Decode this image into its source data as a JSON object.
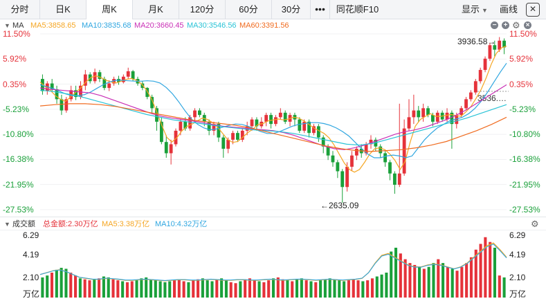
{
  "toolbar": {
    "tabs": [
      {
        "label": "分时",
        "active": false
      },
      {
        "label": "日K",
        "active": false
      },
      {
        "label": "周K",
        "active": true
      },
      {
        "label": "月K",
        "active": false
      },
      {
        "label": "120分",
        "active": false
      },
      {
        "label": "60分",
        "active": false
      },
      {
        "label": "30分",
        "active": false
      }
    ],
    "more_label": "•••",
    "f10_label": "同花顺F10",
    "display_label": "显示",
    "draw_label": "画线",
    "close_label": "✕"
  },
  "price_panel": {
    "indicator_name": "MA",
    "ma5": "MA5:3858.65",
    "ma10": "MA10:3835.68",
    "ma20": "MA20:3660.45",
    "ma30": "MA30:3546.56",
    "ma60": "MA60:3391.56",
    "y_ticks": [
      "11.50%",
      "5.92%",
      "0.35%",
      "-5.23%",
      "-10.80%",
      "-16.38%",
      "-21.95%",
      "-27.53%"
    ],
    "high_marker": "3936.58→",
    "low_marker": "←2635.09",
    "last_price_marker": "3536.…"
  },
  "volume_panel": {
    "name": "成交额",
    "total": "总金额:2.30万亿",
    "ma5": "MA5:3.38万亿",
    "ma10": "MA10:4.32万亿",
    "y_ticks": [
      "6.29",
      "4.19",
      "2.10"
    ],
    "unit": "万亿"
  },
  "colors": {
    "up": "#e5323a",
    "down": "#1aa03a",
    "ma5": "#f5a623",
    "ma10": "#2fa6e0",
    "ma20": "#c92fb5",
    "ma30": "#29c3d6",
    "ma60": "#f06b1f"
  },
  "chart_data": {
    "type": "candlestick",
    "price_axis_pct": [
      11.5,
      5.92,
      0.35,
      -5.23,
      -10.8,
      -16.38,
      -21.95,
      -27.53
    ],
    "candles_pct": [
      [
        1.5,
        -1.2,
        2.5,
        -2.0
      ],
      [
        -1.2,
        0.5,
        1.0,
        -2.0
      ],
      [
        0.5,
        -0.8,
        1.5,
        -1.5
      ],
      [
        -0.8,
        -3.0,
        0.0,
        -4.0
      ],
      [
        -3.0,
        -5.5,
        -2.0,
        -6.5
      ],
      [
        -5.5,
        -3.0,
        -2.5,
        -6.0
      ],
      [
        -3.0,
        -1.0,
        0.0,
        -3.5
      ],
      [
        -1.0,
        -2.5,
        0.0,
        -3.2
      ],
      [
        -2.5,
        0.0,
        1.0,
        -3.0
      ],
      [
        0.0,
        2.5,
        3.5,
        -1.0
      ],
      [
        2.5,
        1.0,
        3.0,
        0.5
      ],
      [
        1.0,
        3.0,
        3.8,
        0.5
      ],
      [
        3.0,
        1.5,
        3.5,
        0.8
      ],
      [
        1.5,
        -0.5,
        2.0,
        -1.0
      ],
      [
        -0.5,
        0.5,
        1.2,
        -1.2
      ],
      [
        0.5,
        1.5,
        2.0,
        0.0
      ],
      [
        1.5,
        0.8,
        2.2,
        0.2
      ],
      [
        0.8,
        2.0,
        2.5,
        0.5
      ],
      [
        2.0,
        3.2,
        4.0,
        1.5
      ],
      [
        3.2,
        1.5,
        3.5,
        1.0
      ],
      [
        1.5,
        0.5,
        2.0,
        0.0
      ],
      [
        0.5,
        -0.5,
        1.0,
        -1.0
      ],
      [
        -0.5,
        -2.5,
        -0.3,
        -3.0
      ],
      [
        -2.5,
        -5.0,
        -2.0,
        -6.0
      ],
      [
        -5.0,
        -8.0,
        -4.5,
        -10.0
      ],
      [
        -8.0,
        -12.5,
        -7.0,
        -13.0
      ],
      [
        -12.5,
        -15.0,
        -11.0,
        -16.0
      ],
      [
        -15.0,
        -13.0,
        -12.0,
        -17.5
      ],
      [
        -13.0,
        -10.0,
        -9.5,
        -13.5
      ],
      [
        -10.0,
        -8.0,
        -7.5,
        -11.0
      ],
      [
        -8.0,
        -9.5,
        -7.0,
        -10.0
      ],
      [
        -9.5,
        -7.0,
        -6.5,
        -10.0
      ],
      [
        -7.0,
        -5.5,
        -5.0,
        -8.0
      ],
      [
        -5.5,
        -6.5,
        -5.0,
        -7.0
      ],
      [
        -6.5,
        -8.0,
        -6.0,
        -9.0
      ],
      [
        -8.0,
        -10.0,
        -7.5,
        -11.0
      ],
      [
        -10.0,
        -8.5,
        -8.0,
        -11.0
      ],
      [
        -8.5,
        -11.5,
        -8.0,
        -12.5
      ],
      [
        -11.5,
        -14.0,
        -11.0,
        -16.0
      ],
      [
        -14.0,
        -12.0,
        -11.5,
        -15.0
      ],
      [
        -12.0,
        -10.5,
        -10.0,
        -13.0
      ],
      [
        -10.5,
        -12.0,
        -10.0,
        -12.5
      ],
      [
        -12.0,
        -10.0,
        -9.5,
        -12.5
      ],
      [
        -10.0,
        -9.0,
        -8.0,
        -11.0
      ],
      [
        -9.0,
        -7.5,
        -7.0,
        -10.0
      ],
      [
        -7.5,
        -9.0,
        -7.0,
        -10.0
      ],
      [
        -9.0,
        -8.0,
        -7.0,
        -9.5
      ],
      [
        -8.0,
        -6.5,
        -6.0,
        -9.0
      ],
      [
        -6.5,
        -8.5,
        -6.0,
        -9.5
      ],
      [
        -8.5,
        -7.0,
        -6.5,
        -9.0
      ],
      [
        -7.0,
        -6.0,
        -5.0,
        -7.5
      ],
      [
        -6.0,
        -8.0,
        -5.5,
        -8.5
      ],
      [
        -8.0,
        -6.5,
        -6.0,
        -9.0
      ],
      [
        -6.5,
        -7.5,
        -6.0,
        -9.0
      ],
      [
        -7.5,
        -10.0,
        -7.0,
        -10.5
      ],
      [
        -10.0,
        -8.0,
        -7.5,
        -10.5
      ],
      [
        -8.0,
        -10.5,
        -7.5,
        -11.5
      ],
      [
        -10.5,
        -9.0,
        -8.5,
        -11.0
      ],
      [
        -9.0,
        -11.5,
        -8.5,
        -12.5
      ],
      [
        -11.5,
        -13.5,
        -11.0,
        -15.0
      ],
      [
        -13.5,
        -15.5,
        -13.0,
        -16.5
      ],
      [
        -15.5,
        -17.0,
        -14.5,
        -18.0
      ],
      [
        -17.0,
        -19.0,
        -16.5,
        -20.5
      ],
      [
        -19.0,
        -22.5,
        -18.5,
        -26.0
      ],
      [
        -22.5,
        -18.0,
        -17.0,
        -23.5
      ],
      [
        -18.0,
        -15.5,
        -14.5,
        -19.0
      ],
      [
        -15.5,
        -14.0,
        -13.5,
        -16.5
      ],
      [
        -14.0,
        -15.0,
        -13.0,
        -16.0
      ],
      [
        -15.0,
        -13.0,
        -12.5,
        -15.5
      ],
      [
        -13.0,
        -12.0,
        -11.0,
        -14.0
      ],
      [
        -12.0,
        -13.5,
        -11.5,
        -14.5
      ],
      [
        -13.5,
        -15.0,
        -13.0,
        -16.0
      ],
      [
        -15.0,
        -17.0,
        -14.5,
        -18.0
      ],
      [
        -17.0,
        -19.5,
        -16.5,
        -21.0
      ],
      [
        -19.5,
        -22.0,
        -19.0,
        -24.0
      ],
      [
        -22.0,
        -19.5,
        -4.0,
        -22.5
      ],
      [
        -19.5,
        -9.5,
        -7.5,
        -20.0
      ],
      [
        -9.5,
        -7.0,
        -3.0,
        -10.0
      ],
      [
        -7.0,
        -5.5,
        -2.0,
        -8.5
      ],
      [
        -5.5,
        -7.0,
        -4.5,
        -8.0
      ],
      [
        -7.0,
        -5.0,
        -4.0,
        -8.0
      ],
      [
        -5.0,
        -6.5,
        -4.5,
        -7.0
      ],
      [
        -6.5,
        -8.0,
        -6.0,
        -9.0
      ],
      [
        -8.0,
        -6.0,
        -5.5,
        -8.5
      ],
      [
        -6.0,
        -7.5,
        -5.5,
        -8.0
      ],
      [
        -7.5,
        -6.0,
        -5.0,
        -8.0
      ],
      [
        -6.0,
        -8.5,
        -5.5,
        -14.0
      ],
      [
        -8.5,
        -6.5,
        -6.0,
        -9.5
      ],
      [
        -6.5,
        -5.0,
        -4.5,
        -7.0
      ],
      [
        -5.0,
        -3.0,
        -2.5,
        -5.5
      ],
      [
        -3.0,
        -1.5,
        -1.0,
        -3.5
      ],
      [
        -1.5,
        1.0,
        1.5,
        -2.0
      ],
      [
        1.0,
        3.5,
        4.0,
        0.5
      ],
      [
        3.5,
        6.0,
        6.5,
        3.0
      ],
      [
        6.0,
        9.0,
        9.5,
        5.5
      ],
      [
        9.0,
        8.0,
        10.0,
        6.5
      ],
      [
        8.0,
        10.0,
        10.8,
        7.5
      ],
      [
        10.0,
        8.5,
        10.5,
        7.0
      ]
    ],
    "ma_series_pct": {
      "MA5": [
        0.8,
        -0.2,
        -1.0,
        -2.2,
        -3.0,
        -3.5,
        -2.5,
        -1.5,
        -0.5,
        0.8,
        1.8,
        2.2,
        1.8,
        1.2,
        0.8,
        0.6,
        1.0,
        1.4,
        1.6,
        1.2,
        0.4,
        -1.0,
        -3.0,
        -5.8,
        -8.8,
        -11.5,
        -12.5,
        -11.5,
        -10.0,
        -9.0,
        -8.5,
        -7.8,
        -7.2,
        -7.5,
        -8.2,
        -9.2,
        -10.6,
        -12.0,
        -12.6,
        -12.4,
        -11.4,
        -10.4,
        -9.6,
        -8.6,
        -8.4,
        -7.8,
        -7.6,
        -7.4,
        -7.6,
        -7.4,
        -7.0,
        -7.2,
        -7.8,
        -8.6,
        -9.4,
        -10.0,
        -10.6,
        -11.6,
        -13.2,
        -15.2,
        -17.2,
        -18.6,
        -19.2,
        -18.6,
        -17.0,
        -15.2,
        -14.0,
        -13.8,
        -14.2,
        -15.2,
        -16.6,
        -18.6,
        -16.8,
        -12.5,
        -9.0,
        -7.5,
        -6.8,
        -6.2,
        -6.8,
        -6.8,
        -6.6,
        -6.4,
        -6.6,
        -6.8,
        -5.8,
        -4.6,
        -2.8,
        -0.8,
        1.8,
        4.8,
        7.2,
        8.4,
        8.8
      ],
      "MA10": [
        0.2,
        -0.2,
        -0.6,
        -1.2,
        -1.8,
        -2.2,
        -2.2,
        -2.0,
        -1.4,
        -0.6,
        0.2,
        0.8,
        1.2,
        1.2,
        1.1,
        1.0,
        1.0,
        1.1,
        1.0,
        0.6,
        -0.4,
        -1.8,
        -3.6,
        -5.6,
        -7.4,
        -8.6,
        -9.4,
        -9.8,
        -9.6,
        -9.2,
        -8.8,
        -8.5,
        -8.6,
        -9.0,
        -9.6,
        -10.2,
        -10.6,
        -10.6,
        -10.2,
        -9.6,
        -9.0,
        -8.6,
        -8.4,
        -8.2,
        -8.2,
        -8.4,
        -8.8,
        -9.4,
        -10.2,
        -11.2,
        -12.6,
        -14.0,
        -15.2,
        -16.0,
        -16.0,
        -15.6,
        -15.4,
        -15.6,
        -16.0,
        -15.6,
        -13.8,
        -12.0,
        -10.6,
        -9.4,
        -8.6,
        -7.8,
        -7.4,
        -7.0,
        -6.2,
        -5.0,
        -3.4,
        -1.4,
        0.8,
        3.0,
        5.0
      ],
      "MA20": [
        -0.5,
        -0.8,
        -1.0,
        -1.2,
        -1.4,
        -1.6,
        -2.2,
        -3.0,
        -3.8,
        -4.6,
        -5.4,
        -6.2,
        -6.8,
        -7.2,
        -7.5,
        -7.8,
        -8.2,
        -8.6,
        -9.0,
        -9.2,
        -9.4,
        -9.6,
        -9.8,
        -10.0,
        -10.4,
        -11.0,
        -11.8,
        -12.6,
        -13.4,
        -14.0,
        -14.2,
        -13.8,
        -13.2,
        -12.4,
        -11.6,
        -10.8,
        -10.2,
        -9.8,
        -9.2,
        -8.4,
        -7.6,
        -6.6,
        -5.4,
        -4.0,
        -2.6,
        -1.2,
        0.2
      ],
      "MA30": [
        -1.0,
        -1.3,
        -1.8,
        -2.4,
        -3.2,
        -4.0,
        -4.8,
        -5.6,
        -6.4,
        -7.0,
        -7.6,
        -8.0,
        -8.4,
        -8.8,
        -9.2,
        -9.5,
        -9.8,
        -10.0,
        -10.2,
        -10.6,
        -11.2,
        -11.8,
        -12.4,
        -13.0,
        -13.2,
        -12.8,
        -12.0,
        -11.2,
        -10.4,
        -9.6,
        -8.8,
        -8.0,
        -7.2,
        -6.2,
        -5.2,
        -4.2
      ],
      "MA60": [
        -4.5,
        -4.2,
        -4.0,
        -4.0,
        -4.2,
        -4.6,
        -5.2,
        -5.8,
        -6.4,
        -7.0,
        -7.6,
        -8.0,
        -8.4,
        -8.8,
        -9.4,
        -10.2,
        -11.0,
        -11.8,
        -12.6,
        -13.4,
        -14.0,
        -14.4,
        -14.6,
        -14.4,
        -14.2,
        -13.8,
        -13.2,
        -12.4,
        -11.2,
        -10.0,
        -8.6,
        -7.0
      ]
    },
    "volume_axis": [
      6.29,
      4.19,
      2.1
    ],
    "volumes": [
      2.1,
      2.3,
      2.6,
      2.9,
      3.1,
      3.0,
      2.6,
      2.3,
      2.0,
      1.9,
      1.8,
      1.9,
      2.0,
      2.2,
      2.1,
      1.9,
      1.8,
      1.7,
      1.6,
      1.7,
      1.8,
      2.0,
      2.1,
      1.9,
      1.8,
      1.7,
      1.6,
      1.7,
      1.8,
      1.9,
      1.7,
      1.6,
      1.8,
      1.9,
      2.0,
      1.8,
      1.7,
      1.9,
      2.0,
      1.8,
      1.6,
      1.5,
      1.7,
      1.9,
      2.0,
      1.8,
      1.7,
      1.6,
      1.8,
      2.0,
      2.1,
      1.9,
      1.8,
      1.7,
      1.9,
      2.0,
      1.8,
      1.7,
      1.6,
      1.8,
      1.9,
      2.0,
      1.9,
      1.8,
      1.7,
      1.8,
      1.9,
      1.8,
      1.7,
      1.8,
      2.0,
      2.2,
      2.4,
      2.6,
      4.8,
      5.2,
      4.6,
      4.0,
      3.6,
      3.4,
      3.2,
      3.0,
      3.2,
      3.6,
      4.0,
      3.6,
      3.2,
      3.0,
      2.8,
      3.2,
      3.6,
      4.2,
      5.0,
      5.6,
      6.3,
      5.8,
      5.2,
      2.3,
      2.1
    ],
    "volume_ma5": [
      2.4,
      2.6,
      2.8,
      2.9,
      2.7,
      2.4,
      2.1,
      2.0,
      1.9,
      1.9,
      2.0,
      1.95,
      1.9,
      1.8,
      1.8,
      1.85,
      1.9,
      1.85,
      1.8,
      1.75,
      1.8,
      1.85,
      1.85,
      1.8,
      1.8,
      1.85,
      1.9,
      1.85,
      1.8,
      1.8,
      1.85,
      1.85,
      1.8,
      1.8,
      1.85,
      1.9,
      1.85,
      1.8,
      1.85,
      1.9,
      1.9,
      1.85,
      1.8,
      1.85,
      1.9,
      1.85,
      1.8,
      1.85,
      1.9,
      2.0,
      2.6,
      3.6,
      4.4,
      4.6,
      4.2,
      3.8,
      3.4,
      3.2,
      3.2,
      3.4,
      3.5,
      3.4,
      3.2,
      3.0,
      3.2,
      3.6,
      4.2,
      4.8,
      5.4,
      5.7,
      5.0,
      4.2
    ]
  }
}
